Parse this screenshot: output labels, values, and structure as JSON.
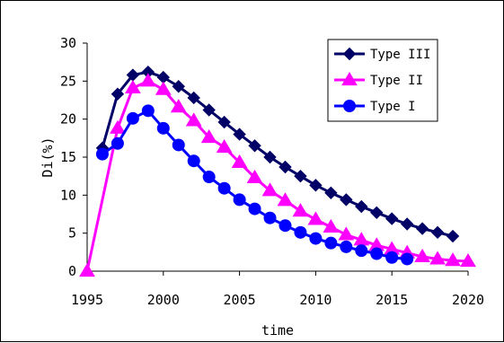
{
  "chart_data": {
    "type": "line",
    "xlabel": "time",
    "ylabel": "Di(%)",
    "xlim": [
      1995,
      2020
    ],
    "ylim": [
      0,
      30
    ],
    "x_ticks": [
      1995,
      2000,
      2005,
      2010,
      2015,
      2020
    ],
    "y_ticks": [
      0,
      5,
      10,
      15,
      20,
      25,
      30
    ],
    "grid": false,
    "legend_position": "top-right",
    "series": [
      {
        "name": "Type III",
        "color": "#000066",
        "marker": "diamond",
        "points": [
          [
            1996,
            16.2
          ],
          [
            1997,
            23.3
          ],
          [
            1998,
            25.8
          ],
          [
            1999,
            26.2
          ],
          [
            2000,
            25.5
          ],
          [
            2001,
            24.3
          ],
          [
            2002,
            22.8
          ],
          [
            2003,
            21.2
          ],
          [
            2004,
            19.6
          ],
          [
            2005,
            18.0
          ],
          [
            2006,
            16.5
          ],
          [
            2007,
            15.0
          ],
          [
            2008,
            13.7
          ],
          [
            2009,
            12.5
          ],
          [
            2010,
            11.3
          ],
          [
            2011,
            10.3
          ],
          [
            2012,
            9.4
          ],
          [
            2013,
            8.5
          ],
          [
            2014,
            7.7
          ],
          [
            2015,
            6.9
          ],
          [
            2016,
            6.2
          ],
          [
            2017,
            5.6
          ],
          [
            2018,
            5.1
          ],
          [
            2019,
            4.6
          ]
        ]
      },
      {
        "name": "Type II",
        "color": "#ff00ff",
        "marker": "triangle",
        "points": [
          [
            1995,
            0.0
          ],
          [
            1997,
            18.8
          ],
          [
            1998,
            24.1
          ],
          [
            1999,
            25.0
          ],
          [
            2000,
            23.9
          ],
          [
            2001,
            21.6
          ],
          [
            2002,
            19.8
          ],
          [
            2003,
            17.6
          ],
          [
            2004,
            16.3
          ],
          [
            2005,
            14.3
          ],
          [
            2006,
            12.3
          ],
          [
            2007,
            10.6
          ],
          [
            2008,
            9.3
          ],
          [
            2009,
            7.9
          ],
          [
            2010,
            6.8
          ],
          [
            2011,
            5.8
          ],
          [
            2012,
            4.8
          ],
          [
            2013,
            4.1
          ],
          [
            2014,
            3.4
          ],
          [
            2015,
            2.9
          ],
          [
            2016,
            2.4
          ],
          [
            2017,
            1.9
          ],
          [
            2018,
            1.6
          ],
          [
            2019,
            1.4
          ],
          [
            2020,
            1.3
          ]
        ]
      },
      {
        "name": "Type I",
        "color": "#0000ff",
        "marker": "circle",
        "points": [
          [
            1996,
            15.4
          ],
          [
            1997,
            16.8
          ],
          [
            1998,
            20.1
          ],
          [
            1999,
            21.1
          ],
          [
            2000,
            18.8
          ],
          [
            2001,
            16.6
          ],
          [
            2002,
            14.5
          ],
          [
            2003,
            12.4
          ],
          [
            2004,
            10.9
          ],
          [
            2005,
            9.4
          ],
          [
            2006,
            8.2
          ],
          [
            2007,
            7.0
          ],
          [
            2008,
            6.0
          ],
          [
            2009,
            5.1
          ],
          [
            2010,
            4.3
          ],
          [
            2011,
            3.7
          ],
          [
            2012,
            3.2
          ],
          [
            2013,
            2.7
          ],
          [
            2014,
            2.3
          ],
          [
            2015,
            1.8
          ],
          [
            2016,
            1.6
          ]
        ]
      }
    ]
  }
}
